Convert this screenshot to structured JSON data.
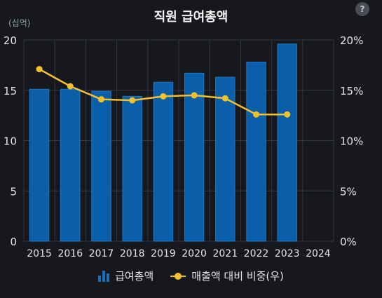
{
  "header": {
    "title": "직원 급여총액",
    "help_label": "?",
    "unit_label": "(십억)"
  },
  "legend": {
    "bar_label": "급여총액",
    "line_label": "매출액 대비 비중(우)"
  },
  "colors": {
    "bar": "#0a5fa8",
    "bar_border": "#1c79c9",
    "line": "#f2c12e",
    "grid": "#343842",
    "text": "#e6e6e6"
  },
  "chart_data": {
    "type": "bar",
    "categories": [
      "2015",
      "2016",
      "2017",
      "2018",
      "2019",
      "2020",
      "2021",
      "2022",
      "2023",
      "2024"
    ],
    "series": [
      {
        "name": "급여총액",
        "type": "bar",
        "axis": "left",
        "values": [
          15.1,
          15.1,
          14.9,
          14.4,
          15.8,
          16.7,
          16.3,
          17.8,
          19.6,
          null
        ]
      },
      {
        "name": "매출액 대비 비중(우)",
        "type": "line",
        "axis": "right",
        "values": [
          17.1,
          15.4,
          14.1,
          14.0,
          14.4,
          14.5,
          14.2,
          12.6,
          12.6,
          null
        ]
      }
    ],
    "ylim_left": [
      0,
      20
    ],
    "yticks_left": [
      "0",
      "5",
      "10",
      "15",
      "20"
    ],
    "ylim_right": [
      0,
      20
    ],
    "yticks_right": [
      "0%",
      "5%",
      "10%",
      "15%",
      "20%"
    ],
    "grid": true,
    "legend_position": "bottom"
  }
}
